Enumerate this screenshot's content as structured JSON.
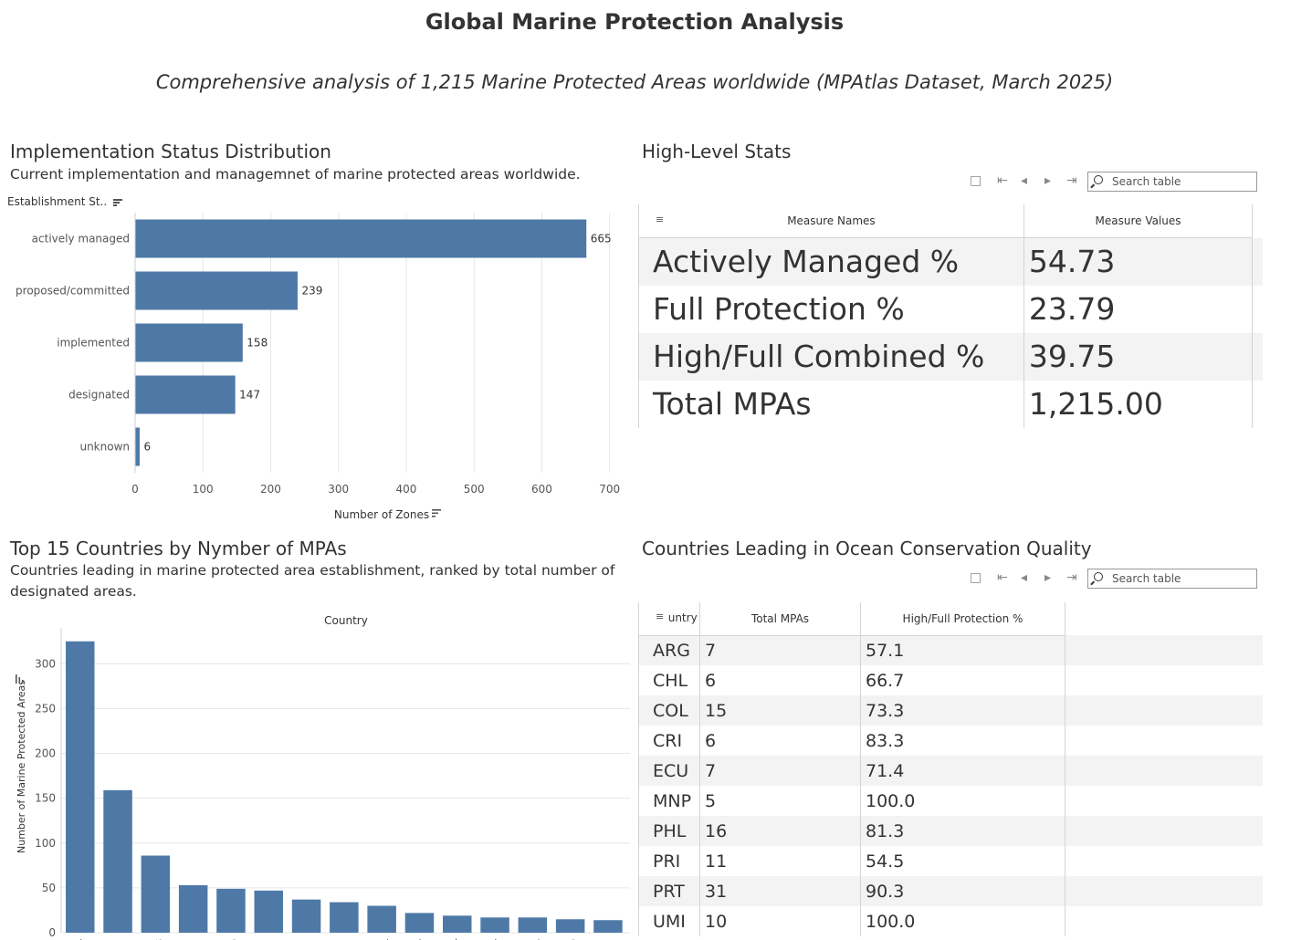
{
  "dashboard": {
    "title": "Global Marine Protection Analysis",
    "subtitle": "Comprehensive analysis of 1,215 Marine Protected Areas worldwide (MPAtlas Dataset, March 2025)"
  },
  "implementation": {
    "title": "Implementation Status Distribution",
    "description": "Current implementation and managemnet of marine protected areas worldwide.",
    "row_header": "Establishment St..",
    "sort_icon": "sort-icon"
  },
  "high_level_stats": {
    "title": "High-Level Stats",
    "search_placeholder": "Search table",
    "columns": [
      "Measure Names",
      "Measure Values"
    ],
    "rows": [
      {
        "name": "Actively Managed %",
        "value": "54.73"
      },
      {
        "name": "Full Protection %",
        "value": "23.79"
      },
      {
        "name": "High/Full Combined %",
        "value": "39.75"
      },
      {
        "name": "Total MPAs",
        "value": "1,215.00"
      }
    ]
  },
  "top_countries": {
    "title": "Top 15 Countries by Nymber of MPAs",
    "description": "Countries leading in marine protected area establishment, ranked by total number of designated areas."
  },
  "conservation_quality": {
    "title": "Countries Leading in Ocean Conservation Quality",
    "search_placeholder": "Search table",
    "columns": [
      "Country",
      "Total MPAs",
      "High/Full Protection %"
    ],
    "rows": [
      {
        "country": "ARG",
        "total": "7",
        "pct": "57.1"
      },
      {
        "country": "CHL",
        "total": "6",
        "pct": "66.7"
      },
      {
        "country": "COL",
        "total": "15",
        "pct": "73.3"
      },
      {
        "country": "CRI",
        "total": "6",
        "pct": "83.3"
      },
      {
        "country": "ECU",
        "total": "7",
        "pct": "71.4"
      },
      {
        "country": "MNP",
        "total": "5",
        "pct": "100.0"
      },
      {
        "country": "PHL",
        "total": "16",
        "pct": "81.3"
      },
      {
        "country": "PRI",
        "total": "11",
        "pct": "54.5"
      },
      {
        "country": "PRT",
        "total": "31",
        "pct": "90.3"
      },
      {
        "country": "UMI",
        "total": "10",
        "pct": "100.0"
      }
    ]
  },
  "colors": {
    "bar": "#4e79a7",
    "grid": "#e6e6e6",
    "band": "#f3f3f3",
    "text": "#333333"
  },
  "chart_data": [
    {
      "type": "bar",
      "orientation": "horizontal",
      "categories": [
        "actively managed",
        "proposed/committed",
        "implemented",
        "designated",
        "unknown"
      ],
      "values": [
        665,
        239,
        158,
        147,
        6
      ],
      "data_labels": [
        "665",
        "239",
        "158",
        "147",
        "6"
      ],
      "xlabel": "Number of Zones",
      "ylabel": "Establishment St..",
      "xlim": [
        0,
        730
      ],
      "xticks": [
        0,
        100,
        200,
        300,
        400,
        500,
        600,
        700
      ],
      "grid": true
    },
    {
      "type": "bar",
      "orientation": "vertical",
      "categories": [
        "A",
        "F",
        "S",
        "B",
        "C",
        "N",
        "N",
        "B",
        "T",
        "A",
        "J",
        "A",
        "T",
        "O",
        "L"
      ],
      "values": [
        325,
        159,
        86,
        53,
        49,
        47,
        37,
        34,
        30,
        22,
        19,
        17,
        17,
        15,
        14
      ],
      "title": "Country",
      "ylabel": "Number of Marine Protected Areas",
      "ylim": [
        0,
        340
      ],
      "yticks": [
        0,
        50,
        100,
        150,
        200,
        250,
        300
      ],
      "grid": true
    }
  ]
}
